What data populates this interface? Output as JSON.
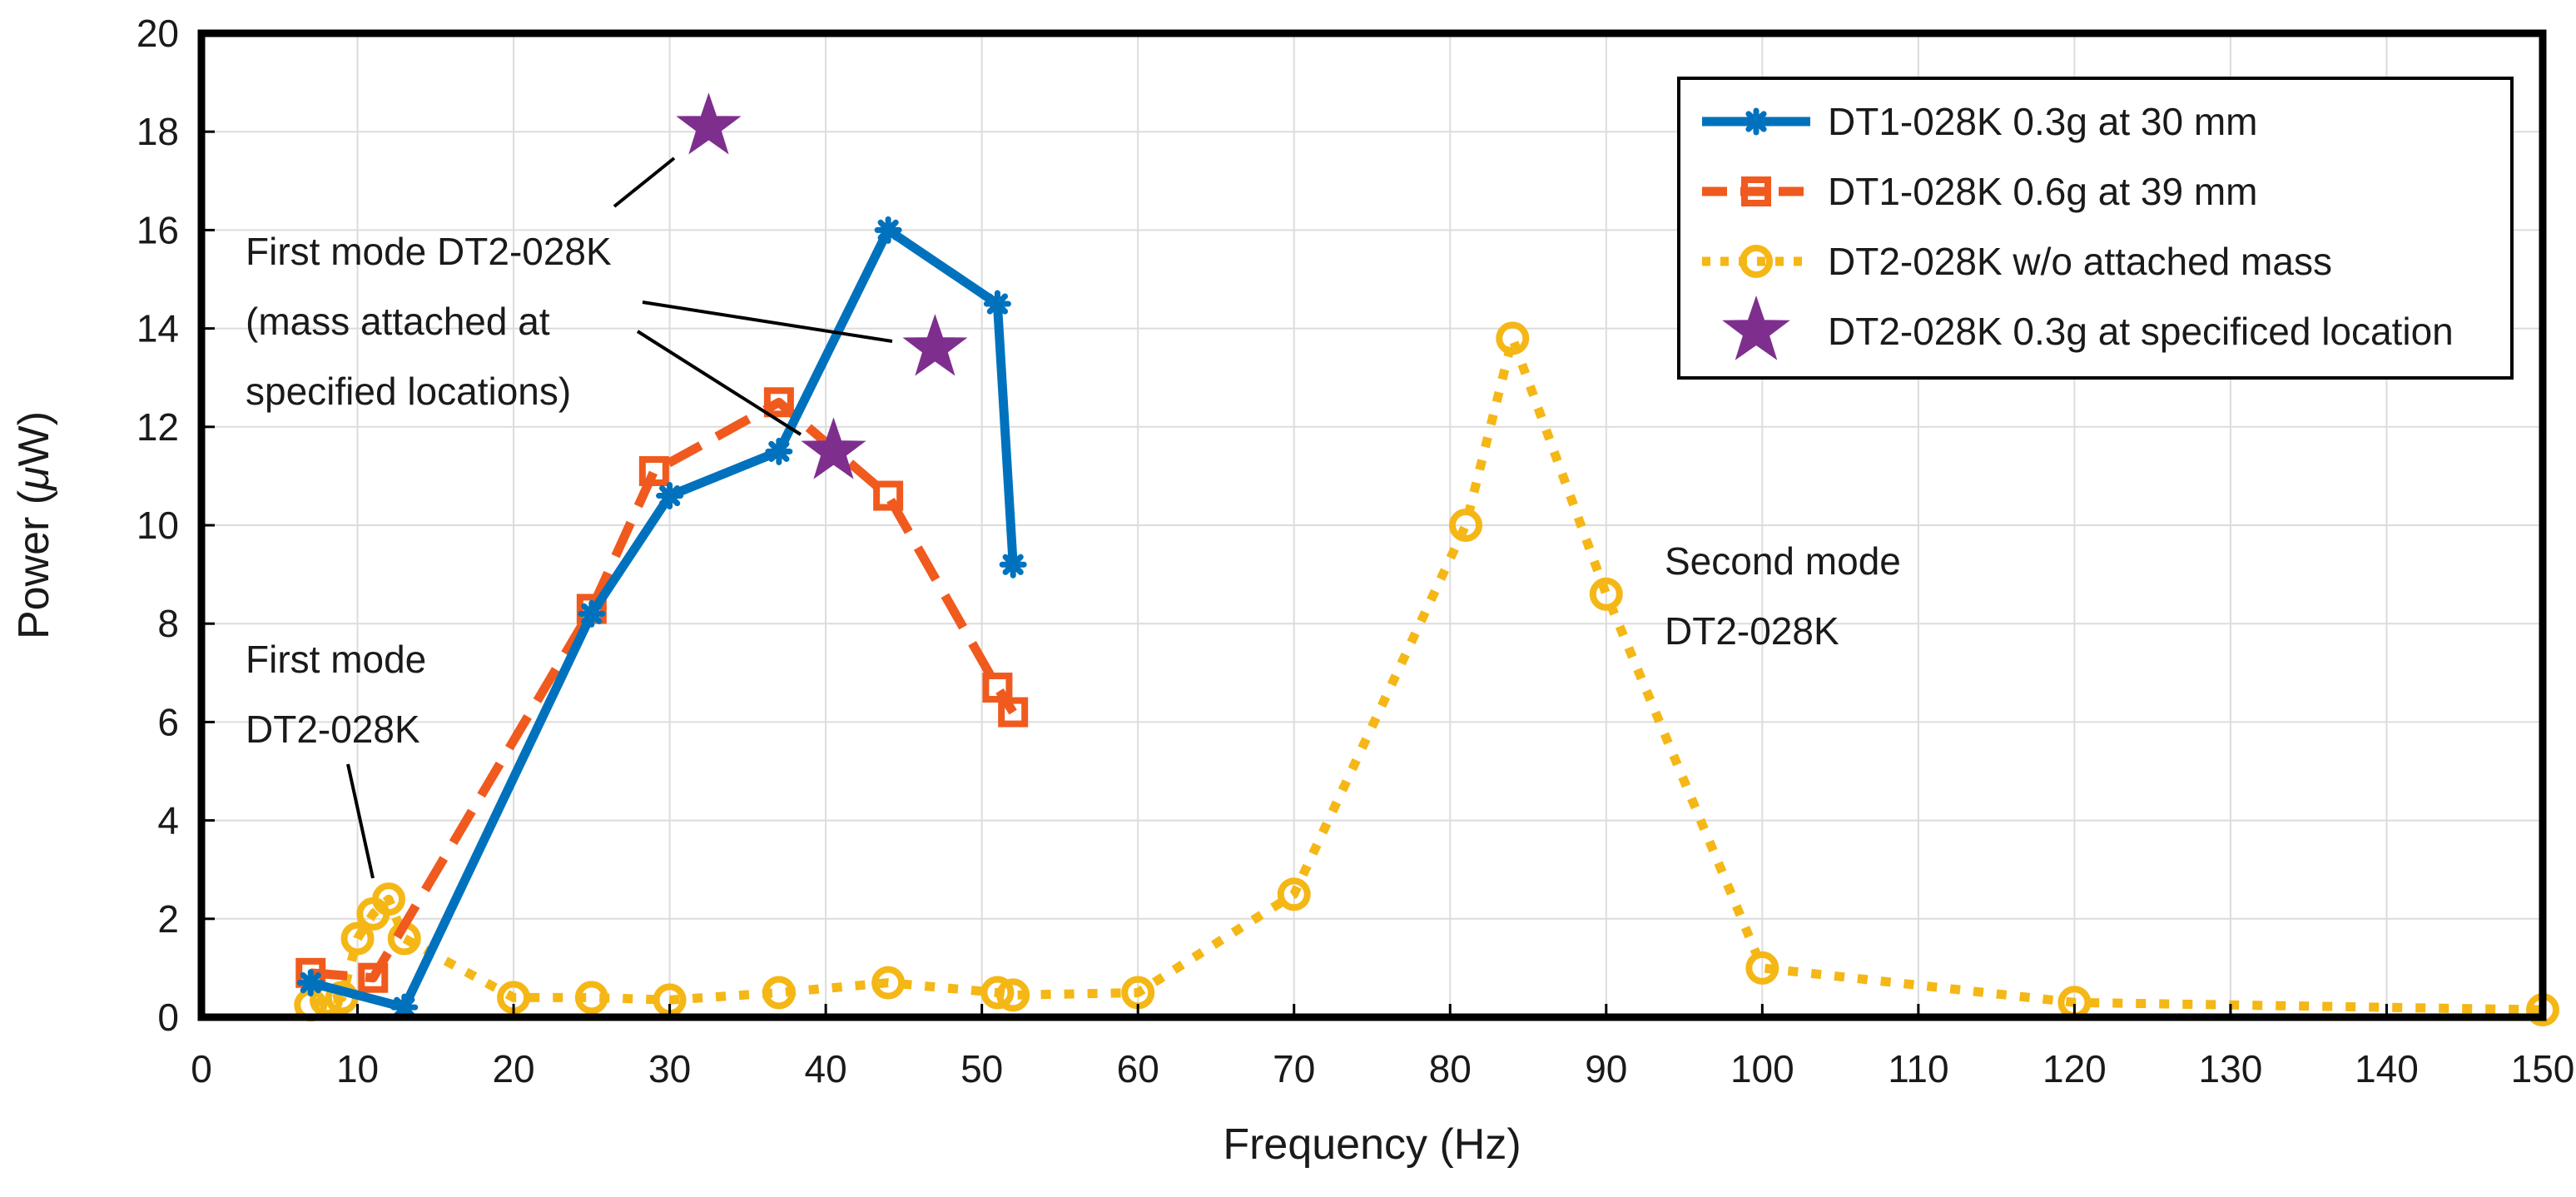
{
  "chart_data": {
    "type": "line",
    "title": "",
    "xlabel": "Frequency (Hz)",
    "ylabel_prefix": "Power (",
    "ylabel_mu": "μ",
    "ylabel_suffix": "W)",
    "xlim": [
      0,
      150
    ],
    "ylim": [
      0,
      20
    ],
    "xticks": [
      0,
      10,
      20,
      30,
      40,
      50,
      60,
      70,
      80,
      90,
      100,
      110,
      120,
      130,
      140,
      150
    ],
    "yticks": [
      0,
      2,
      4,
      6,
      8,
      10,
      12,
      14,
      16,
      18,
      20
    ],
    "grid": true,
    "legend_position": "top-right",
    "series": [
      {
        "name": "DT1-028K 0.3g at 30 mm",
        "color": "#0072bd",
        "line": "solid",
        "marker": "asterisk",
        "x": [
          7,
          13,
          25,
          30,
          37,
          44,
          51,
          52
        ],
        "y": [
          0.7,
          0.2,
          8.2,
          10.6,
          11.5,
          16.0,
          14.5,
          9.2
        ]
      },
      {
        "name": "DT1-028K 0.6g at 39 mm",
        "color": "#f05a1e",
        "line": "dashed",
        "marker": "square",
        "x": [
          7,
          11,
          25,
          29,
          37,
          44,
          51,
          52
        ],
        "y": [
          0.9,
          0.8,
          8.3,
          11.1,
          12.5,
          10.6,
          6.7,
          6.2
        ]
      },
      {
        "name": "DT2-028K w/o attached mass",
        "color": "#f5b716",
        "line": "dotted",
        "marker": "circle",
        "x": [
          7,
          8,
          9,
          10,
          11,
          12,
          13,
          20,
          25,
          30,
          37,
          44,
          51,
          52,
          60,
          70,
          81,
          84,
          90,
          100,
          120,
          150
        ],
        "y": [
          0.25,
          0.35,
          0.4,
          1.6,
          2.1,
          2.4,
          1.6,
          0.4,
          0.4,
          0.35,
          0.5,
          0.7,
          0.5,
          0.45,
          0.5,
          2.5,
          10.0,
          13.8,
          8.6,
          1.0,
          0.3,
          0.15
        ]
      },
      {
        "name": "DT2-028K 0.3g at specificed location",
        "color": "#7e2f8e",
        "line": "none",
        "marker": "star",
        "x": [
          32.5,
          47,
          40.5
        ],
        "y": [
          18.1,
          13.6,
          11.5
        ]
      }
    ],
    "annotations": [
      {
        "lines": [
          "First mode DT2-028K",
          "(mass attached at",
          "specified locations)"
        ]
      },
      {
        "lines": [
          "First mode",
          "DT2-028K"
        ]
      },
      {
        "lines": [
          "Second mode",
          "DT2-028K"
        ]
      }
    ]
  }
}
